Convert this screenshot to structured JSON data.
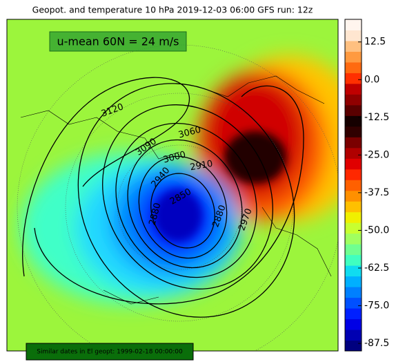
{
  "header": {
    "title": "Geopot. and temperature 10 hPa 2019-12-03 06:00 GFS run: 12z"
  },
  "map": {
    "annotation": "u-mean 60N = 24 m/s",
    "contour_labels": [
      "3120",
      "3090",
      "3060",
      "3000",
      "2910",
      "2940",
      "2850",
      "2880",
      "2880",
      "2970"
    ],
    "footer": "Similar dates in El geopt: 1999-02-18 00:00:00"
  },
  "colorbar": {
    "lim": [
      -90,
      20
    ],
    "colors": [
      "#00007f",
      "#0000b2",
      "#0000e5",
      "#0020ff",
      "#0050ff",
      "#0080ff",
      "#00b0ff",
      "#10dcf0",
      "#40ffc0",
      "#70ff90",
      "#a0ff60",
      "#c8ff30",
      "#f0f000",
      "#ffc000",
      "#ff9000",
      "#ff6000",
      "#ff2800",
      "#e00000",
      "#b00000",
      "#7a0000",
      "#300000",
      "#150000",
      "#5a0000",
      "#900000",
      "#c00000",
      "#ff3000",
      "#ff6a10",
      "#ff9a40",
      "#ffc080",
      "#ffe6d0",
      "#fff5ee"
    ],
    "ticks": [
      {
        "value": 12.5,
        "label": "12.5"
      },
      {
        "value": 0,
        "label": "0.0"
      },
      -12.5,
      {
        "value": -25,
        "label": "-25.0"
      },
      -37.5,
      {
        "value": -50,
        "label": "-50.0"
      },
      -62.5,
      {
        "value": -75,
        "label": "-75.0"
      },
      -87.5
    ]
  }
}
